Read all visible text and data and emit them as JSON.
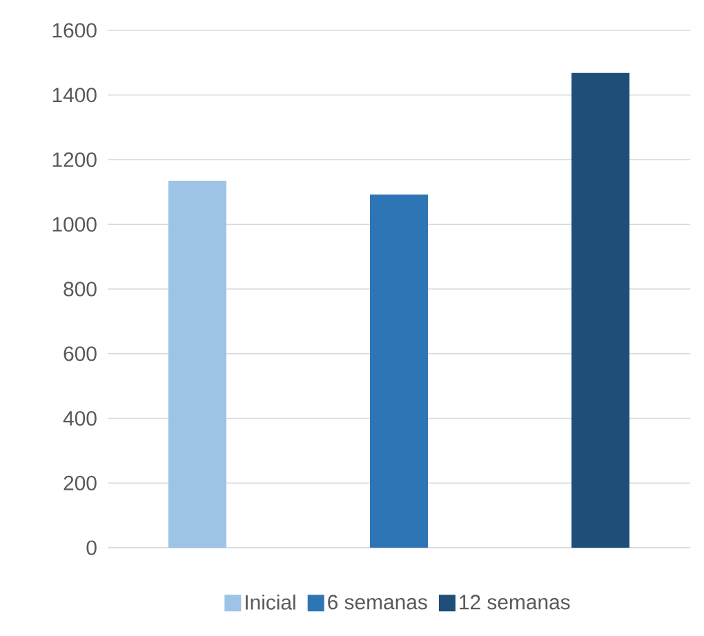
{
  "chart_data": {
    "type": "bar",
    "categories": [
      null
    ],
    "series": [
      {
        "name": "Inicial",
        "color": "#9dc3e6",
        "values": [
          1135
        ]
      },
      {
        "name": "6 semanas",
        "color": "#2e75b6",
        "values": [
          1092
        ]
      },
      {
        "name": "12 semanas",
        "color": "#1f4e79",
        "values": [
          1468
        ]
      }
    ],
    "ylim": [
      0,
      1600
    ],
    "yticks": [
      0,
      200,
      400,
      600,
      800,
      1000,
      1200,
      1400,
      1600
    ],
    "grid": "y",
    "legend": "bottom"
  }
}
